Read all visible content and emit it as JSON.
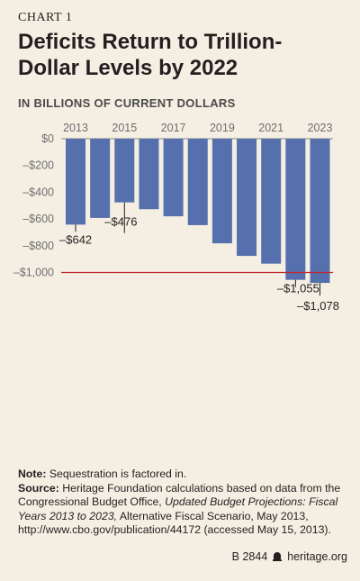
{
  "header": {
    "chart_number": "CHART 1",
    "title": "Deficits Return to Trillion-Dollar Levels by 2022",
    "subtitle": "IN BILLIONS OF CURRENT DOLLARS"
  },
  "chart_data": {
    "type": "bar",
    "title": "Deficits Return to Trillion-Dollar Levels by 2022",
    "ylabel": "IN BILLIONS OF CURRENT DOLLARS",
    "categories": [
      "2013",
      "2014",
      "2015",
      "2016",
      "2017",
      "2018",
      "2019",
      "2020",
      "2021",
      "2022",
      "2023"
    ],
    "values": [
      -642,
      -592,
      -476,
      -527,
      -580,
      -646,
      -782,
      -876,
      -934,
      -1055,
      -1078
    ],
    "ylim": [
      -1100,
      0
    ],
    "y_ticks": [
      0,
      -200,
      -400,
      -600,
      -800,
      -1000
    ],
    "y_tick_labels": [
      "$0",
      "–$200",
      "–$400",
      "–$600",
      "–$800",
      "–$1,000"
    ],
    "x_tick_labels": [
      "2013",
      "2015",
      "2017",
      "2019",
      "2021",
      "2023"
    ],
    "reference_line": {
      "value": -1000,
      "color": "#c0272d"
    },
    "data_labels": [
      {
        "category": "2013",
        "text": "–$642"
      },
      {
        "category": "2015",
        "text": "–$476"
      },
      {
        "category": "2022",
        "text": "–$1,055"
      },
      {
        "category": "2023",
        "text": "–$1,078"
      }
    ],
    "bar_color": "#5670ad",
    "grid": false,
    "legend": "none"
  },
  "notes": {
    "note_label": "Note:",
    "note_text": "Sequestration is factored in.",
    "source_label": "Source:",
    "source_text_1": "Heritage Foundation calculations based on data from the Congressional Budget Office,",
    "source_italic": "Updated Budget Projections: Fiscal Years 2013 to 2023,",
    "source_text_2": "Alternative Fiscal Scenario, May 2013, http://www.cbo.gov/publication/44172 (accessed May 15, 2013)."
  },
  "footer": {
    "code": "B 2844",
    "site": "heritage.org"
  }
}
